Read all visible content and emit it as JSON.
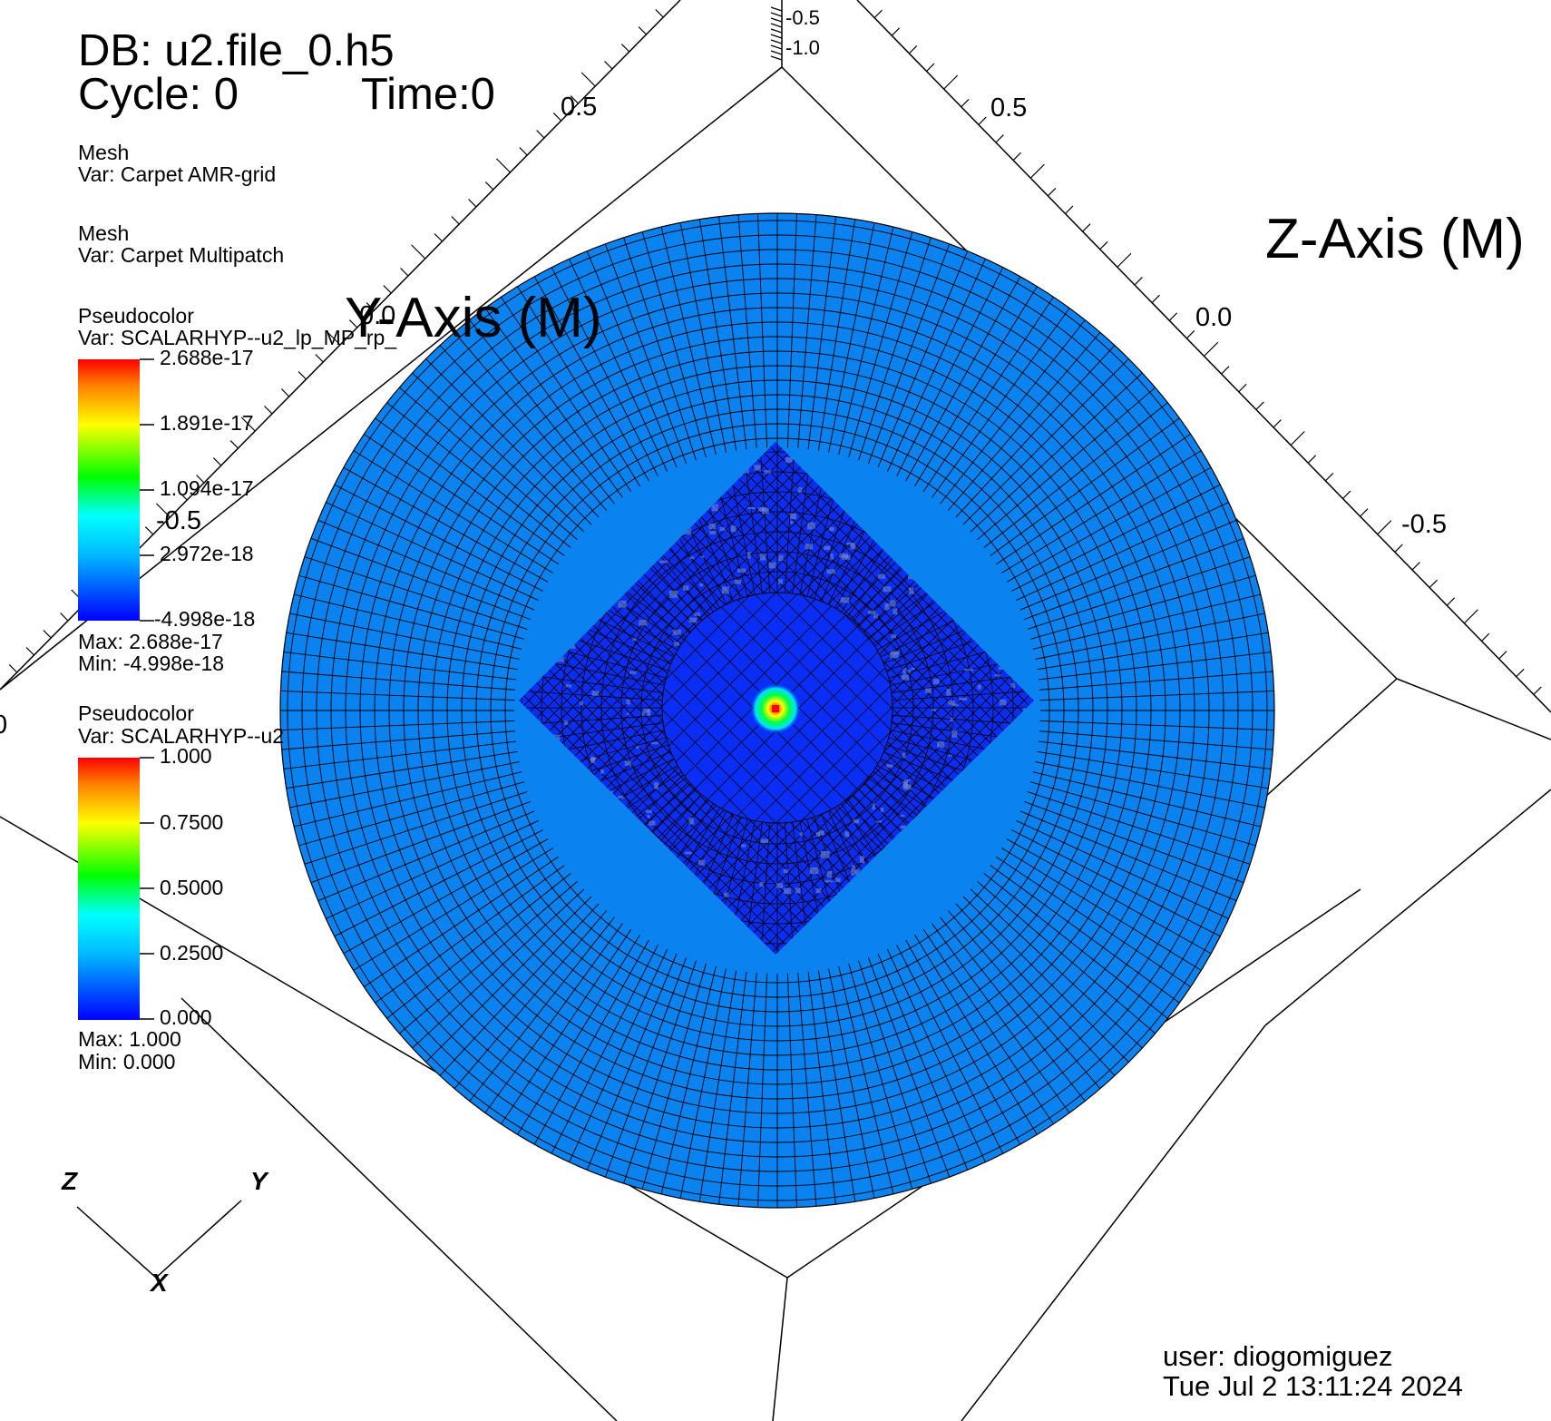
{
  "header": {
    "db": "DB: u2.file_0.h5",
    "cycle": "Cycle: 0",
    "time": "Time:0"
  },
  "legends": [
    {
      "type": "Mesh",
      "var": "Var: Carpet AMR-grid"
    },
    {
      "type": "Mesh",
      "var": "Var: Carpet Multipatch"
    },
    {
      "type": "Pseudocolor",
      "var": "Var: SCALARHYP--u2_lp_MP_rp_",
      "ticks": [
        "2.688e-17",
        "1.891e-17",
        "1.094e-17",
        "2.972e-18",
        "-4.998e-18"
      ],
      "max": "Max:  2.688e-17",
      "min": "Min: -4.998e-18"
    },
    {
      "type": "Pseudocolor",
      "var": "Var: SCALARHYP--u2",
      "ticks": [
        "1.000",
        "0.7500",
        "0.5000",
        "0.2500",
        "0.000"
      ],
      "max": "Max:  1.000",
      "min": "Min:  0.000"
    }
  ],
  "colormap": [
    "#0000ff",
    "#00a0ff",
    "#00ffff",
    "#00ff00",
    "#ffff00",
    "#ff8000",
    "#ff0000"
  ],
  "axes": {
    "y_title": "Y-Axis (M)",
    "z_title": "Z-Axis (M)",
    "y_ticks": [
      "0.5",
      "0.0",
      "-0.5"
    ],
    "z_ticks": [
      "0.5",
      "0.0",
      "-0.5"
    ],
    "x_ticks": [
      "-0.5",
      "-1.0"
    ],
    "left_edge_tick": "0"
  },
  "triad": {
    "z": "Z",
    "y": "Y",
    "x": "X"
  },
  "footer": {
    "user": "user: diogomiguez",
    "date": "Tue Jul  2 13:11:24 2024"
  },
  "colors": {
    "disk_fill": "#0a82f0",
    "patch_fill": "#0a2ef5",
    "mesh_line": "#000000",
    "background": "#ffffff"
  }
}
